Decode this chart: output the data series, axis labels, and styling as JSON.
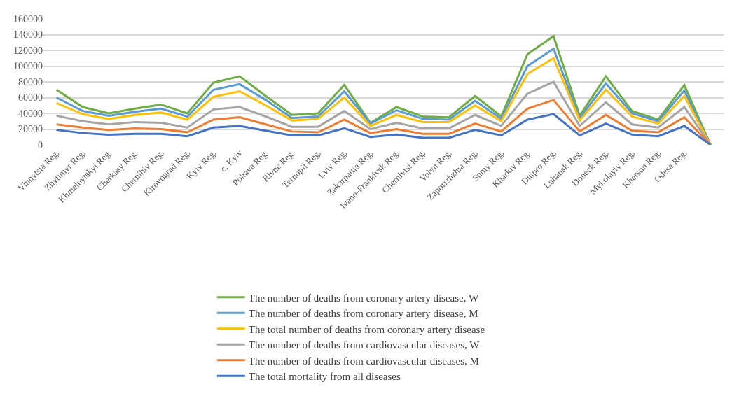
{
  "chart_data": {
    "type": "line",
    "categories": [
      "Vinnytsia Reg.",
      "Zhytimyr Reg.",
      "Khmelnytskyi Reg.",
      "Cherkasy Reg.",
      "Chernihiv Reg.",
      "Kirovograd Reg.",
      "Kyiv Reg.",
      "c. Kyiv",
      "Poltava Reg.",
      "Rivne Reg.",
      "Ternopil Reg.",
      "Lviv Reg.",
      "Zakarpattia Reg.",
      "Ivano-Frankivsk Reg.",
      "Chernivtsi Reg.",
      "Volyn Reg.",
      "Zaporizhzhia Reg.",
      "Sumy Reg.",
      "Kharkiv Reg.",
      "Dnipro Reg.",
      "Luhansk Reg.",
      "Doneck Reg.",
      "Mykolayiv Reg.",
      "Kherson Reg.",
      "Odesa Reg.",
      null
    ],
    "series": [
      {
        "name": "The number of deaths from coronary artery disease, W",
        "color": "#70ad47",
        "values": [
          70000,
          48000,
          40000,
          46000,
          51000,
          40000,
          79000,
          87000,
          62000,
          38000,
          40000,
          76000,
          28000,
          48000,
          36000,
          35000,
          62000,
          36000,
          115000,
          138000,
          37000,
          87000,
          43000,
          32000,
          76000,
          0
        ]
      },
      {
        "name": "The number of deaths from coronary artery disease, M",
        "color": "#5b9bd5",
        "values": [
          60000,
          43000,
          37000,
          42000,
          46000,
          36000,
          70000,
          77000,
          57000,
          34000,
          36000,
          68000,
          27000,
          44000,
          33000,
          32000,
          56000,
          33000,
          100000,
          122000,
          34000,
          78000,
          40000,
          30000,
          69000,
          0
        ]
      },
      {
        "name": "The total number of deaths from coronary artery disease",
        "color": "#ffc000",
        "values": [
          53000,
          39000,
          33000,
          38000,
          41000,
          32000,
          61000,
          68000,
          50000,
          31000,
          33000,
          60000,
          24000,
          38000,
          29000,
          29000,
          50000,
          30000,
          90000,
          110000,
          31000,
          70000,
          36000,
          27000,
          62000,
          0
        ]
      },
      {
        "name": "The number of deaths from cardiovascular diseases, W",
        "color": "#a5a5a5",
        "values": [
          37000,
          30000,
          26000,
          29000,
          28000,
          22000,
          45000,
          48000,
          36000,
          23000,
          23000,
          43000,
          20000,
          28000,
          21000,
          21000,
          38000,
          24000,
          65000,
          80000,
          24000,
          54000,
          26000,
          22000,
          48000,
          0
        ]
      },
      {
        "name": "The number of deaths from cardiovascular diseases, M",
        "color": "#ed7d31",
        "values": [
          26000,
          22000,
          19000,
          21000,
          20000,
          16000,
          32000,
          35000,
          26000,
          17000,
          16000,
          32000,
          15000,
          20000,
          14000,
          14000,
          27000,
          17000,
          46000,
          57000,
          17000,
          38000,
          18000,
          16000,
          35000,
          0
        ]
      },
      {
        "name": "The total mortality from all diseases",
        "color": "#4472c4",
        "values": [
          19000,
          15000,
          13000,
          14000,
          14000,
          11000,
          22000,
          24000,
          18000,
          12000,
          12000,
          21000,
          10000,
          13000,
          9000,
          9000,
          19000,
          12000,
          32000,
          39000,
          12000,
          27000,
          13000,
          11000,
          24000,
          0
        ]
      }
    ],
    "ylim": [
      0,
      160000
    ],
    "yticks": [
      0,
      20000,
      40000,
      60000,
      80000,
      100000,
      120000,
      140000,
      160000
    ],
    "grid": "y",
    "legend": "bottom",
    "marker": "none",
    "line_style": "solid"
  }
}
